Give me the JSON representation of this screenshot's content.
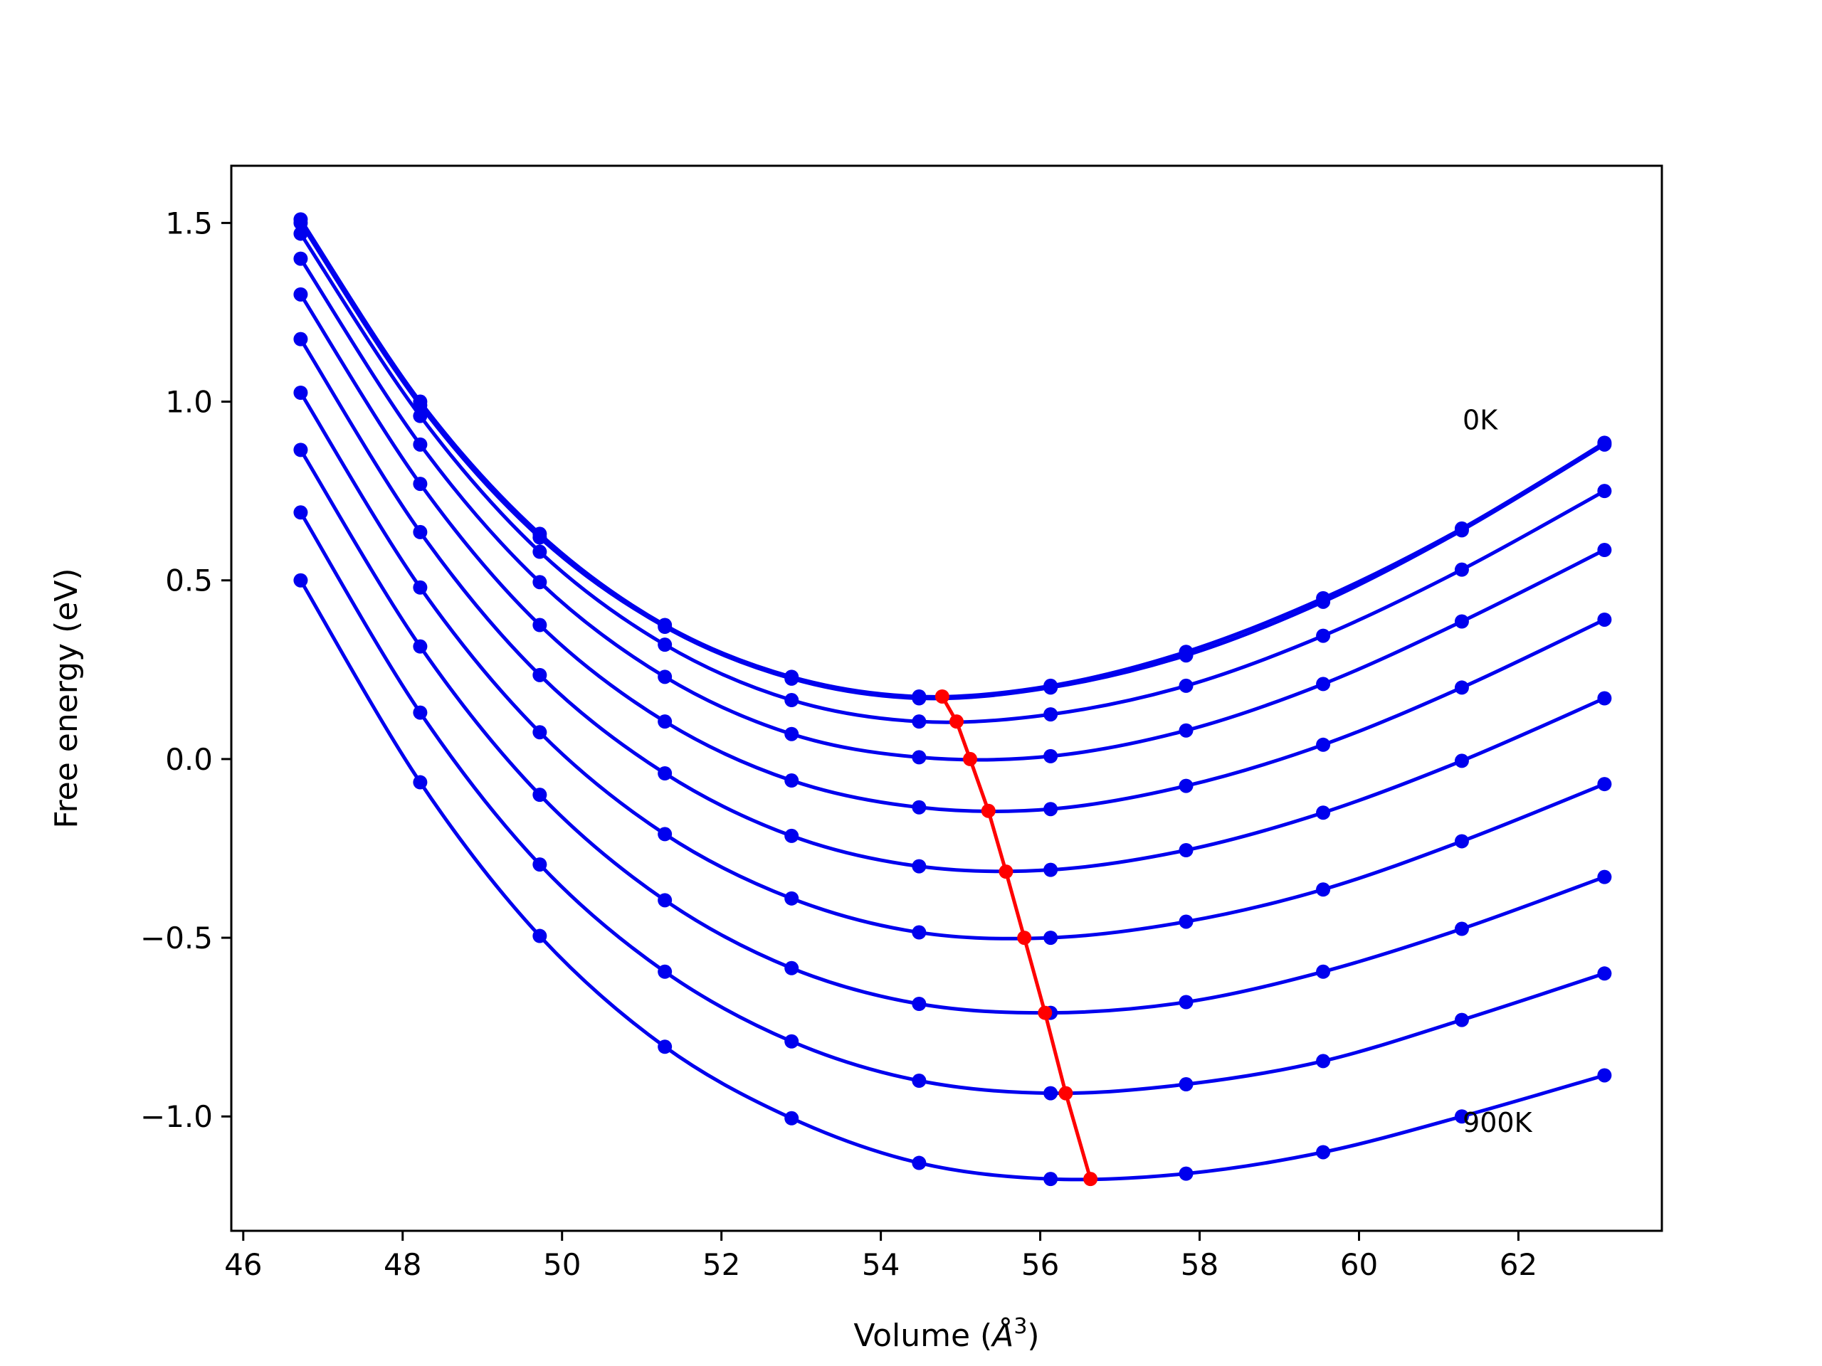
{
  "chart_data": {
    "type": "line",
    "xlabel": "Volume (",
    "xlabel_unit": "Å",
    "xlabel_exp": "3",
    "xlabel_close": ")",
    "ylabel": "Free energy (eV)",
    "xlim": [
      45.85,
      63.8
    ],
    "ylim": [
      -1.32,
      1.66
    ],
    "xticks": [
      46,
      48,
      50,
      52,
      54,
      56,
      58,
      60,
      62
    ],
    "yticks": [
      -1.0,
      -0.5,
      0.0,
      0.5,
      1.0,
      1.5
    ],
    "ytick_labels": [
      "−1.0",
      "−0.5",
      "0.0",
      "0.5",
      "1.0",
      "1.5"
    ],
    "grid": false,
    "colors": {
      "curves": "#0000ee",
      "minima": "#ff0000"
    },
    "x": [
      46.72,
      48.22,
      49.72,
      51.29,
      52.88,
      54.48,
      56.13,
      57.83,
      59.55,
      61.29,
      63.08
    ],
    "series": [
      {
        "values": [
          1.51,
          1.0,
          0.63,
          0.375,
          0.23,
          0.175,
          0.205,
          0.3,
          0.45,
          0.645,
          0.885
        ]
      },
      {
        "values": [
          1.5,
          0.99,
          0.62,
          0.37,
          0.225,
          0.17,
          0.2,
          0.29,
          0.44,
          0.64,
          0.88
        ]
      },
      {
        "values": [
          1.47,
          0.96,
          0.58,
          0.32,
          0.165,
          0.105,
          0.125,
          0.205,
          0.345,
          0.53,
          0.75
        ]
      },
      {
        "values": [
          1.4,
          0.88,
          0.495,
          0.23,
          0.07,
          0.005,
          0.008,
          0.08,
          0.21,
          0.385,
          0.585
        ]
      },
      {
        "values": [
          1.3,
          0.77,
          0.375,
          0.105,
          -0.06,
          -0.135,
          -0.14,
          -0.075,
          0.04,
          0.2,
          0.39
        ]
      },
      {
        "values": [
          1.175,
          0.635,
          0.235,
          -0.04,
          -0.215,
          -0.3,
          -0.31,
          -0.255,
          -0.15,
          -0.005,
          0.17
        ]
      },
      {
        "values": [
          1.025,
          0.48,
          0.075,
          -0.21,
          -0.39,
          -0.485,
          -0.5,
          -0.455,
          -0.365,
          -0.23,
          -0.07
        ]
      },
      {
        "values": [
          0.865,
          0.315,
          -0.1,
          -0.395,
          -0.585,
          -0.685,
          -0.71,
          -0.68,
          -0.595,
          -0.475,
          -0.33
        ]
      },
      {
        "values": [
          0.69,
          0.13,
          -0.295,
          -0.595,
          -0.79,
          -0.9,
          -0.935,
          -0.91,
          -0.845,
          -0.73,
          -0.6
        ]
      },
      {
        "values": [
          0.5,
          -0.065,
          -0.495,
          -0.805,
          -1.005,
          -1.13,
          -1.175,
          -1.16,
          -1.1,
          -1.0,
          -0.885
        ]
      }
    ],
    "minima": {
      "x": [
        54.77,
        54.95,
        55.12,
        55.35,
        55.57,
        55.8,
        56.06,
        56.32,
        56.63
      ],
      "y": [
        0.175,
        0.105,
        0.0,
        -0.145,
        -0.315,
        -0.5,
        -0.71,
        -0.935,
        -1.175
      ]
    },
    "annotations": [
      {
        "text": "0K",
        "x": 61.3,
        "y": 0.95
      },
      {
        "text": "900K",
        "x": 61.3,
        "y": -1.015
      }
    ]
  }
}
